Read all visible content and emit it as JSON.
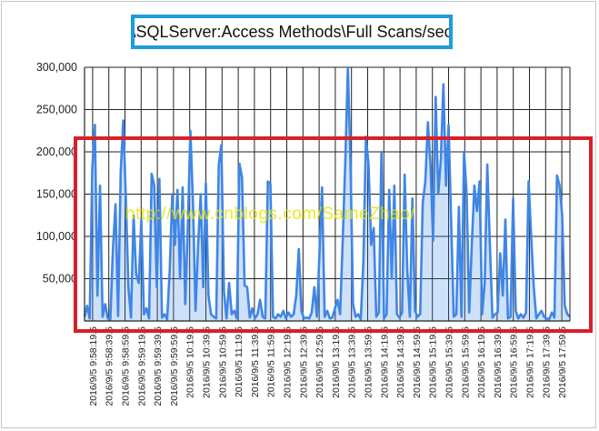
{
  "window": {
    "title": "\\SQLServer:Access Methods\\Full Scans/sec"
  },
  "watermark": {
    "text": "http://www.cnblogs.com/SameZhao/"
  },
  "colors": {
    "series": "#3f86e6",
    "title_border": "#1e9bdc",
    "highlight_border": "#d7202a",
    "grid": "#222222"
  },
  "chart_data": {
    "type": "area",
    "title": "\\SQLServer:Access Methods\\Full Scans/sec",
    "xlabel": "",
    "ylabel": "",
    "ylim": [
      0,
      300000
    ],
    "yticks": [
      50000,
      100000,
      150000,
      200000,
      250000,
      300000
    ],
    "ytick_labels": [
      "50,000",
      "100,000",
      "150,000",
      "200,000",
      "250,000",
      "300,000"
    ],
    "grid": true,
    "legend": "none",
    "x_tick_labels": [
      "2016/9/5 9:58:19.5",
      "2016/9/5 9:58:39.5",
      "2016/9/5 9:58:59.5",
      "2016/9/5 9:59:19.5",
      "2016/9/5 9:59:39.5",
      "2016/9/5 9:59:59.5",
      "2016/9/5 10:19.5",
      "2016/9/5 10:39.5",
      "2016/9/5 10:59.5",
      "2016/9/5 11:19.5",
      "2016/9/5 11:39.5",
      "2016/9/5 11:59.5",
      "2016/9/5 12:19.5",
      "2016/9/5 12:39.5",
      "2016/9/5 12:59.5",
      "2016/9/5 13:19.5",
      "2016/9/5 13:39.5",
      "2016/9/5 13:59.5",
      "2016/9/5 14:19.5",
      "2016/9/5 14:39.5",
      "2016/9/5 14:59.5",
      "2016/9/5 15:19.5",
      "2016/9/5 15:39.5",
      "2016/9/5 15:59.5",
      "2016/9/5 16:19.5",
      "2016/9/5 16:39.5",
      "2016/9/5 16:59.5",
      "2016/9/5 17:19.5",
      "2016/9/5 17:39.5",
      "2016/9/5 17:59.5"
    ],
    "series": [
      {
        "values": [
          5000,
          18000,
          3000,
          180000,
          232000,
          30000,
          160000,
          5000,
          20000,
          3000,
          2000,
          85000,
          138000,
          6000,
          175000,
          237000,
          145000,
          40000,
          4000,
          125000,
          55000,
          45000,
          120000,
          8000,
          15000,
          3000,
          174000,
          160000,
          40000,
          168000,
          4000,
          8000,
          2000,
          60000,
          150000,
          90000,
          155000,
          50000,
          158000,
          20000,
          110000,
          225000,
          140000,
          12000,
          90000,
          150000,
          40000,
          163000,
          30000,
          8000,
          5000,
          3000,
          185000,
          208000,
          35000,
          3000,
          45000,
          8000,
          12000,
          3000,
          186000,
          170000,
          42000,
          40000,
          4000,
          15000,
          3000,
          8000,
          25000,
          5000,
          3000,
          165000,
          162000,
          5000,
          3000,
          8000,
          5000,
          12000,
          3000,
          10000,
          5000,
          8000,
          30000,
          85000,
          12000,
          3000,
          4000,
          3000,
          10000,
          40000,
          5000,
          80000,
          158000,
          5000,
          12000,
          3000,
          4000,
          15000,
          25000,
          8000,
          95000,
          188000,
          300000,
          190000,
          20000,
          5000,
          8000,
          2000,
          70000,
          218000,
          185000,
          90000,
          110000,
          5000,
          10000,
          200000,
          3000,
          8000,
          155000,
          50000,
          160000,
          8000,
          4000,
          10000,
          173000,
          60000,
          5000,
          145000,
          12000,
          5000,
          8000,
          140000,
          165000,
          235000,
          185000,
          95000,
          265000,
          150000,
          190000,
          280000,
          160000,
          232000,
          118000,
          5000,
          8000,
          135000,
          5000,
          200000,
          150000,
          10000,
          90000,
          160000,
          130000,
          165000,
          8000,
          45000,
          185000,
          90000,
          4000,
          8000,
          10000,
          80000,
          30000,
          120000,
          3000,
          5000,
          145000,
          12000,
          3000,
          8000,
          4000,
          10000,
          165000,
          100000,
          40000,
          3000,
          8000,
          12000,
          5000,
          3000,
          2000,
          10000,
          4000,
          172000,
          160000,
          125000,
          18000,
          8000,
          5000
        ]
      }
    ]
  }
}
